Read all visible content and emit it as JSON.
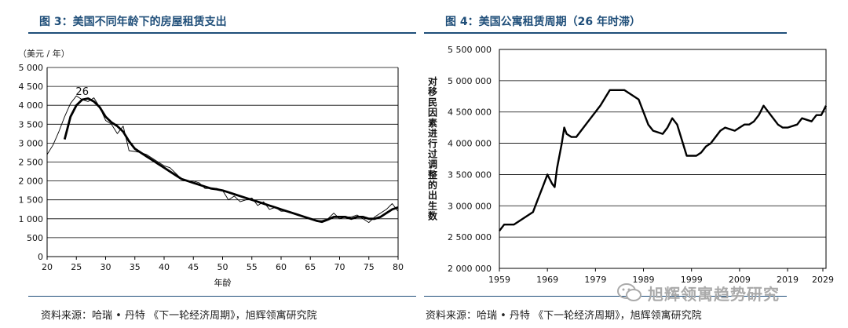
{
  "chart_data": [
    {
      "type": "line",
      "title": "图 3：美国不同年龄下的房屋租赁支出",
      "ylabel": "（美元 / 年）",
      "xlabel": "年龄",
      "xlim": [
        20,
        80
      ],
      "ylim": [
        0,
        5000
      ],
      "x_ticks": [
        20,
        25,
        30,
        35,
        40,
        45,
        50,
        55,
        60,
        65,
        70,
        75,
        80
      ],
      "y_ticks": [
        0,
        500,
        1000,
        1500,
        2000,
        2500,
        3000,
        3500,
        4000,
        4500,
        5000
      ],
      "y_tick_labels": [
        "0",
        "500",
        "1 000",
        "1 500",
        "2 000",
        "2 500",
        "3 000",
        "3 500",
        "4 000",
        "4 500",
        "5 000"
      ],
      "grid": "horizontal",
      "annotation": {
        "text": "26",
        "x": 26,
        "y": 4400
      },
      "source": "资料来源：哈瑞 • 丹特 《下一轮经济周期》，旭辉领寓研究院",
      "series": [
        {
          "style": "thin",
          "x": [
            20,
            21,
            22,
            23,
            24,
            25,
            26,
            27,
            28,
            29,
            30,
            31,
            32,
            33,
            34,
            35,
            36,
            37,
            38,
            39,
            40,
            41,
            42,
            43,
            44,
            45,
            46,
            47,
            48,
            49,
            50,
            51,
            52,
            53,
            54,
            55,
            56,
            57,
            58,
            59,
            60,
            61,
            62,
            63,
            64,
            65,
            66,
            67,
            68,
            69,
            70,
            71,
            72,
            73,
            74,
            75,
            76,
            77,
            78,
            79,
            80
          ],
          "y": [
            2700,
            2950,
            3300,
            3700,
            4050,
            4250,
            4150,
            4100,
            4200,
            3950,
            3600,
            3500,
            3250,
            3450,
            2800,
            2780,
            2750,
            2700,
            2600,
            2500,
            2400,
            2350,
            2200,
            2050,
            2000,
            2000,
            1950,
            1800,
            1800,
            1800,
            1750,
            1500,
            1600,
            1450,
            1500,
            1550,
            1350,
            1450,
            1250,
            1300,
            1200,
            1200,
            1150,
            1100,
            1050,
            1000,
            950,
            950,
            1000,
            1150,
            1000,
            1050,
            1050,
            1100,
            1000,
            900,
            1050,
            1150,
            1250,
            1400,
            1200
          ]
        },
        {
          "style": "thick",
          "x": [
            23,
            24,
            25,
            26,
            27,
            28,
            29,
            30,
            31,
            32,
            33,
            34,
            35,
            36,
            37,
            38,
            39,
            40,
            41,
            42,
            43,
            44,
            45,
            46,
            47,
            48,
            49,
            50,
            51,
            52,
            53,
            54,
            55,
            56,
            57,
            58,
            59,
            60,
            61,
            62,
            63,
            64,
            65,
            66,
            67,
            68,
            69,
            70,
            71,
            72,
            73,
            74,
            75,
            76,
            77,
            78,
            79,
            80
          ],
          "y": [
            3100,
            3700,
            4000,
            4150,
            4180,
            4100,
            3950,
            3700,
            3550,
            3450,
            3300,
            3050,
            2850,
            2750,
            2650,
            2550,
            2450,
            2350,
            2250,
            2150,
            2050,
            2000,
            1950,
            1900,
            1850,
            1800,
            1780,
            1750,
            1700,
            1650,
            1600,
            1550,
            1500,
            1450,
            1400,
            1350,
            1300,
            1250,
            1200,
            1150,
            1100,
            1050,
            1000,
            950,
            920,
            980,
            1050,
            1050,
            1050,
            1000,
            1050,
            1050,
            1000,
            1000,
            1050,
            1150,
            1250,
            1300
          ]
        }
      ]
    },
    {
      "type": "line",
      "title": "图 4：美国公寓租赁周期（26 年时滞）",
      "ylabel": "对移民因素进行过调整的出生数",
      "xlabel": "",
      "xlim": [
        1959,
        2027
      ],
      "ylim": [
        2000000,
        5500000
      ],
      "x_ticks": [
        1959,
        1969,
        1979,
        1989,
        1999,
        2009,
        2019,
        2029
      ],
      "x_tick_labels": [
        "1959",
        "1969",
        "1979",
        "1989",
        "1999",
        "2009",
        "2019",
        "2029"
      ],
      "y_ticks": [
        2000000,
        2500000,
        3000000,
        3500000,
        4000000,
        4500000,
        5000000,
        5500000
      ],
      "y_tick_labels": [
        "2 000 000",
        "2 500 000",
        "3 000 000",
        "3 500 000",
        "4 000 000",
        "4 500 000",
        "5 000 000",
        "5 500 000"
      ],
      "grid": "horizontal",
      "source": "资料来源：哈瑞 • 丹特 《下一轮经济周期》，旭辉领寓研究院",
      "series": [
        {
          "x": [
            1959,
            1960,
            1962,
            1964,
            1966,
            1967,
            1968,
            1969,
            1970,
            1970.5,
            1971,
            1972,
            1972.5,
            1973,
            1974,
            1975,
            1976,
            1978,
            1980,
            1982,
            1983,
            1984,
            1985,
            1986,
            1988,
            1989,
            1990,
            1991,
            1993,
            1994,
            1995,
            1996,
            1997,
            1998,
            1999,
            2000,
            2001,
            2002,
            2003,
            2004,
            2005,
            2006,
            2008,
            2009,
            2010,
            2011,
            2012,
            2013,
            2014,
            2015,
            2017,
            2018,
            2019,
            2021,
            2022,
            2024,
            2025,
            2026,
            2027
          ],
          "y": [
            2600000,
            2700000,
            2700000,
            2800000,
            2900000,
            3100000,
            3300000,
            3500000,
            3350000,
            3300000,
            3600000,
            4000000,
            4250000,
            4150000,
            4100000,
            4100000,
            4200000,
            4400000,
            4600000,
            4850000,
            4850000,
            4850000,
            4850000,
            4800000,
            4700000,
            4500000,
            4300000,
            4200000,
            4150000,
            4250000,
            4400000,
            4300000,
            4050000,
            3800000,
            3800000,
            3800000,
            3850000,
            3950000,
            4000000,
            4100000,
            4200000,
            4250000,
            4200000,
            4250000,
            4300000,
            4300000,
            4350000,
            4450000,
            4600000,
            4500000,
            4300000,
            4250000,
            4250000,
            4300000,
            4400000,
            4350000,
            4450000,
            4450000,
            4600000
          ]
        }
      ]
    }
  ],
  "watermark": "旭辉领寓趋势研究"
}
